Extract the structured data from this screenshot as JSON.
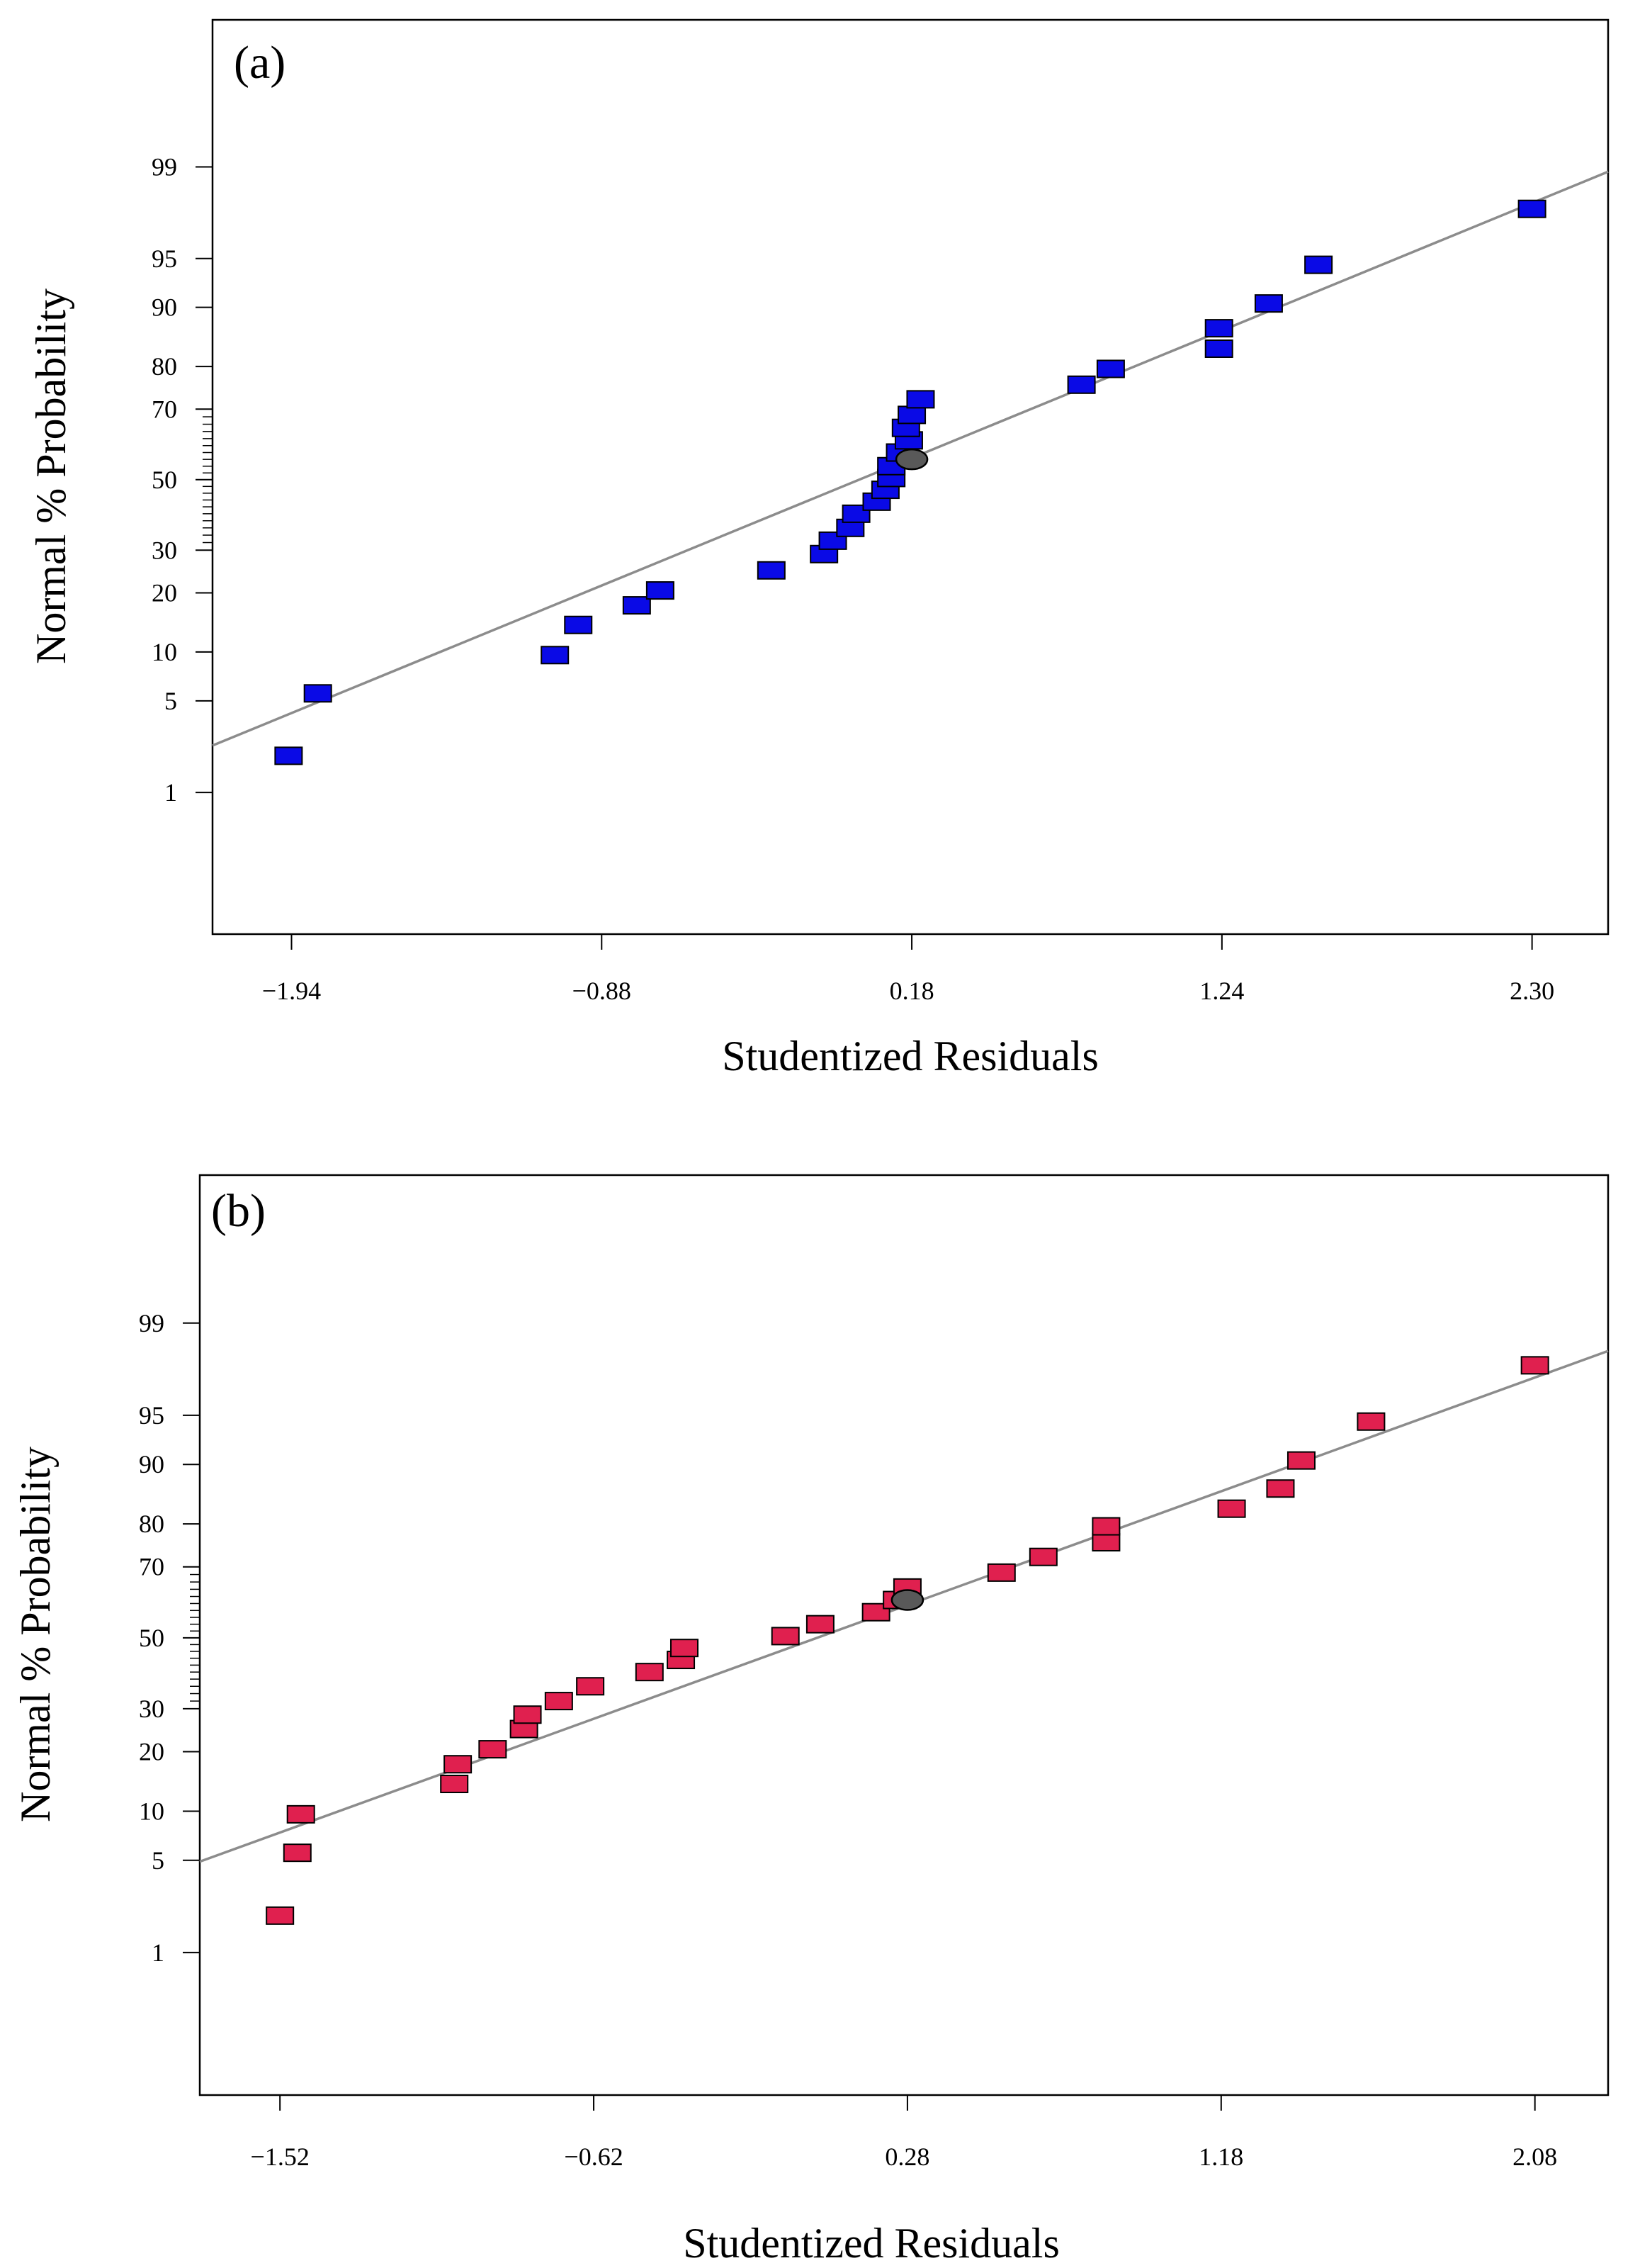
{
  "chart_data": [
    {
      "type": "scatter",
      "panel_label": "(a)",
      "xlabel": "Studentized Residuals",
      "ylabel": "Normal % Probability",
      "xticks": [
        -1.94,
        -0.88,
        0.18,
        1.24,
        2.3
      ],
      "xtick_labels": [
        "−1.94",
        "−0.88",
        "0.18",
        "1.24",
        "2.30"
      ],
      "yticks": [
        1,
        5,
        10,
        20,
        30,
        50,
        70,
        80,
        90,
        95,
        99
      ],
      "ytick_labels": [
        "1",
        "5",
        "10",
        "20",
        "30",
        "50",
        "70",
        "80",
        "90",
        "95",
        "99"
      ],
      "xlim": [
        -2.21,
        2.56
      ],
      "z_range": [
        -3.38,
        3.42
      ],
      "marker_color": "#0a0ae6",
      "marker_stroke": "#000000",
      "center_marker_color": "#595959",
      "line_color": "#8c8c8c",
      "fit_line": {
        "x": [
          -2.21,
          2.56
        ],
        "p": [
          2.4,
          98.9
        ]
      },
      "points": [
        {
          "x": -1.95,
          "p": 2.0
        },
        {
          "x": -1.85,
          "p": 5.6
        },
        {
          "x": -1.04,
          "p": 9.6
        },
        {
          "x": -0.96,
          "p": 14.0
        },
        {
          "x": -0.76,
          "p": 17.5
        },
        {
          "x": -0.68,
          "p": 20.5
        },
        {
          "x": -0.3,
          "p": 25.0
        },
        {
          "x": -0.12,
          "p": 29.0
        },
        {
          "x": -0.09,
          "p": 32.5
        },
        {
          "x": -0.03,
          "p": 36.0
        },
        {
          "x": -0.01,
          "p": 40.0
        },
        {
          "x": 0.06,
          "p": 43.5
        },
        {
          "x": 0.09,
          "p": 47.0
        },
        {
          "x": 0.11,
          "p": 50.5
        },
        {
          "x": 0.11,
          "p": 54.0
        },
        {
          "x": 0.14,
          "p": 58.0
        },
        {
          "x": 0.17,
          "p": 61.5
        },
        {
          "x": 0.16,
          "p": 65.0
        },
        {
          "x": 0.18,
          "p": 68.5
        },
        {
          "x": 0.21,
          "p": 72.5
        },
        {
          "x": 0.76,
          "p": 76.0
        },
        {
          "x": 0.86,
          "p": 79.5
        },
        {
          "x": 1.23,
          "p": 83.5
        },
        {
          "x": 1.23,
          "p": 87.0
        },
        {
          "x": 1.4,
          "p": 90.5
        },
        {
          "x": 1.57,
          "p": 94.5
        },
        {
          "x": 2.3,
          "p": 97.8
        }
      ],
      "center_point": {
        "x": 0.18,
        "p": 56.0
      }
    },
    {
      "type": "scatter",
      "panel_label": "(b)",
      "xlabel": "Studentized Residuals",
      "ylabel": "Normal % Probability",
      "xticks": [
        -1.52,
        -0.62,
        0.28,
        1.18,
        2.08
      ],
      "xtick_labels": [
        "−1.52",
        "−0.62",
        "0.28",
        "1.18",
        "2.08"
      ],
      "yticks": [
        1,
        5,
        10,
        20,
        30,
        50,
        70,
        80,
        90,
        95,
        99
      ],
      "ytick_labels": [
        "1",
        "5",
        "10",
        "20",
        "30",
        "50",
        "70",
        "80",
        "90",
        "95",
        "99"
      ],
      "xlim": [
        -1.75,
        2.29
      ],
      "z_range": [
        -3.38,
        3.42
      ],
      "marker_color": "#e0204f",
      "marker_stroke": "#000000",
      "center_marker_color": "#595959",
      "line_color": "#8c8c8c",
      "fit_line": {
        "x": [
          -1.75,
          2.29
        ],
        "p": [
          4.9,
          98.3
        ]
      },
      "points": [
        {
          "x": -1.52,
          "p": 2.0
        },
        {
          "x": -1.47,
          "p": 5.6
        },
        {
          "x": -1.46,
          "p": 9.6
        },
        {
          "x": -1.02,
          "p": 14.0
        },
        {
          "x": -1.01,
          "p": 17.5
        },
        {
          "x": -0.91,
          "p": 20.5
        },
        {
          "x": -0.82,
          "p": 25.0
        },
        {
          "x": -0.81,
          "p": 28.5
        },
        {
          "x": -0.72,
          "p": 32.0
        },
        {
          "x": -0.63,
          "p": 36.0
        },
        {
          "x": -0.46,
          "p": 40.0
        },
        {
          "x": -0.37,
          "p": 43.5
        },
        {
          "x": -0.36,
          "p": 47.0
        },
        {
          "x": -0.07,
          "p": 50.5
        },
        {
          "x": 0.03,
          "p": 54.0
        },
        {
          "x": 0.19,
          "p": 57.5
        },
        {
          "x": 0.25,
          "p": 61.0
        },
        {
          "x": 0.28,
          "p": 64.5
        },
        {
          "x": 0.55,
          "p": 68.5
        },
        {
          "x": 0.67,
          "p": 72.5
        },
        {
          "x": 0.85,
          "p": 76.0
        },
        {
          "x": 0.85,
          "p": 79.5
        },
        {
          "x": 1.21,
          "p": 83.0
        },
        {
          "x": 1.35,
          "p": 86.5
        },
        {
          "x": 1.41,
          "p": 90.5
        },
        {
          "x": 1.61,
          "p": 94.5
        },
        {
          "x": 2.08,
          "p": 97.8
        }
      ],
      "center_point": {
        "x": 0.28,
        "p": 61.0
      }
    }
  ]
}
